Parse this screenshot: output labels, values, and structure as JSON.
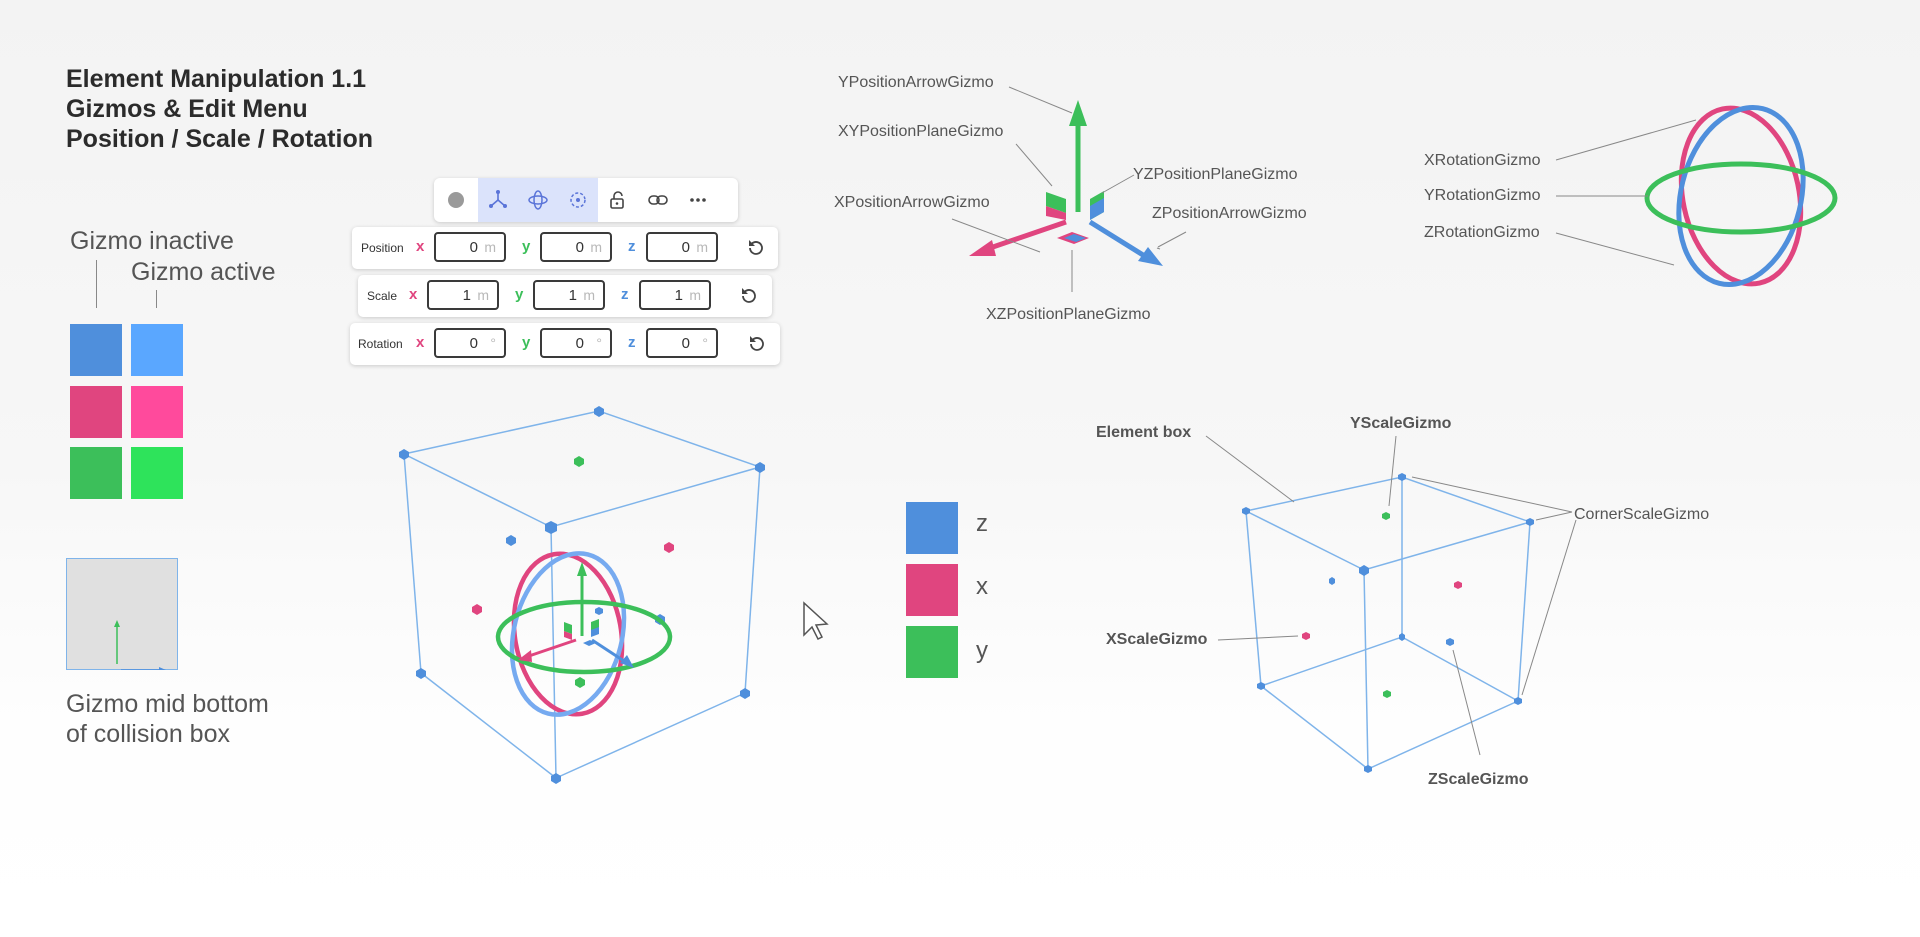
{
  "title": {
    "line1": "Element Manipulation 1.1",
    "line2": "Gizmos & Edit Menu",
    "line3": "Position / Scale / Rotation"
  },
  "legend": {
    "inactive_label": "Gizmo inactive",
    "active_label": "Gizmo active",
    "inactive_colors": [
      "#4f8fdc",
      "#e0457f",
      "#3cbf5a"
    ],
    "active_colors": [
      "#5aa7ff",
      "#ff4a9c",
      "#2ee35b"
    ],
    "mid_bottom_label_line1": "Gizmo mid bottom",
    "mid_bottom_label_line2": "of collision box"
  },
  "toolbar": {
    "icons": [
      "circle-icon",
      "move-axes-icon",
      "rotate-icon",
      "scale-icon",
      "unlock-icon",
      "link-icon",
      "more-icon"
    ]
  },
  "transform": {
    "position": {
      "label": "Position",
      "x": "0",
      "y": "0",
      "z": "0",
      "unit": "m"
    },
    "scale": {
      "label": "Scale",
      "x": "1",
      "y": "1",
      "z": "1",
      "unit": "m"
    },
    "rotation": {
      "label": "Rotation",
      "x": "0",
      "y": "0",
      "z": "0",
      "unit": "°"
    },
    "axis_x": "x",
    "axis_y": "y",
    "axis_z": "z"
  },
  "axis_legend": {
    "z": "z",
    "x": "x",
    "y": "y"
  },
  "position_gizmo_labels": {
    "y_arrow": "YPositionArrowGizmo",
    "xy_plane": "XYPositionPlaneGizmo",
    "yz_plane": "YZPositionPlaneGizmo",
    "x_arrow": "XPositionArrowGizmo",
    "z_arrow": "ZPositionArrowGizmo",
    "xz_plane": "XZPositionPlaneGizmo"
  },
  "rotation_gizmo_labels": {
    "x": "XRotationGizmo",
    "y": "YRotationGizmo",
    "z": "ZRotationGizmo"
  },
  "scale_gizmo_labels": {
    "element_box": "Element box",
    "y_scale": "YScaleGizmo",
    "corner_scale": "CornerScaleGizmo",
    "x_scale": "XScaleGizmo",
    "z_scale": "ZScaleGizmo"
  },
  "colors": {
    "x": "#e0457f",
    "y": "#3cbf5a",
    "z": "#4f8fdc",
    "box_line": "#7fb4ea"
  }
}
